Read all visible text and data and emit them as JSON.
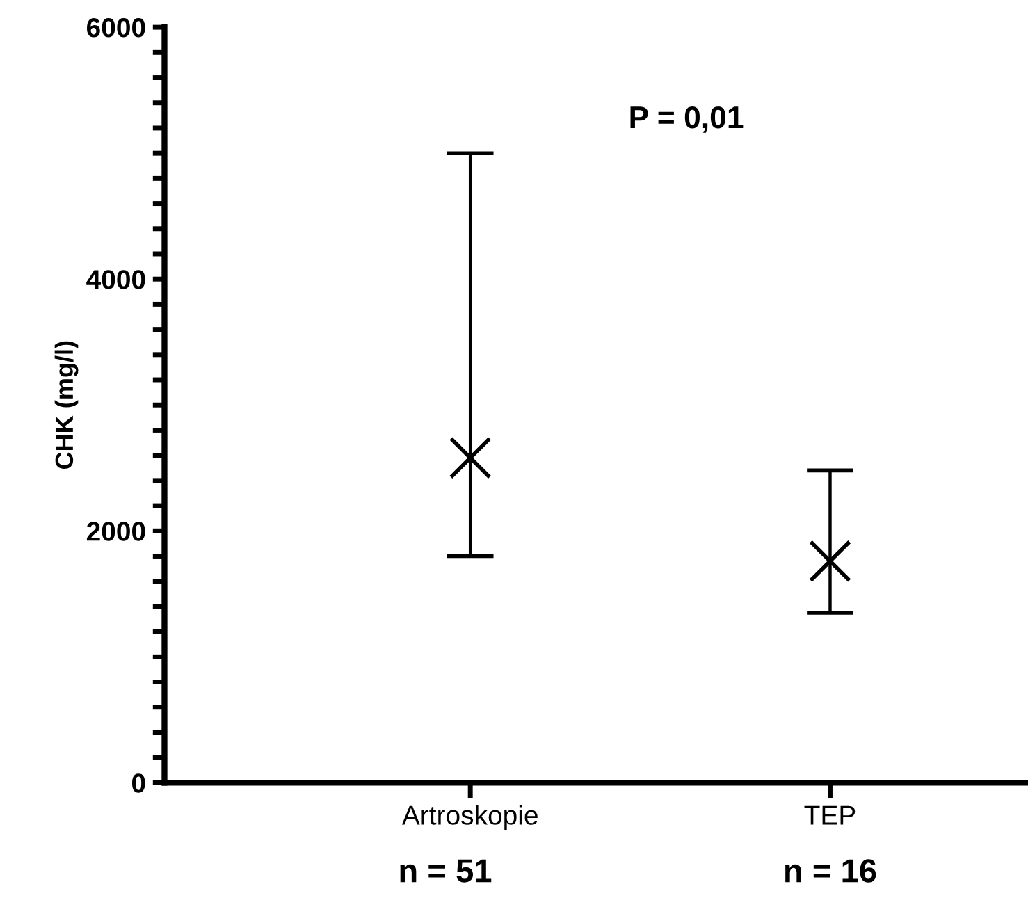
{
  "chart_data": {
    "type": "scatter",
    "ylabel": "CHK (mg/l)",
    "categories": [
      "Artroskopie",
      "TEP"
    ],
    "series": [
      {
        "color": "#000000",
        "marker": "cross",
        "values": [
          2580,
          null
        ],
        "errors": [
          [
            1800,
            5000
          ],
          null
        ]
      },
      {
        "color": "#000000",
        "marker": "cross",
        "values": [
          null,
          1760
        ],
        "errors": [
          null,
          [
            1350,
            2480
          ]
        ]
      }
    ],
    "ylim": [
      0,
      6000
    ],
    "yticks": [
      0,
      {
        "value": 200,
        "label": null
      },
      {
        "value": 400,
        "label": null
      },
      {
        "value": 600,
        "label": null
      },
      {
        "value": 800,
        "label": null
      },
      {
        "value": 1000,
        "label": null
      },
      {
        "value": 1200,
        "label": null
      },
      {
        "value": 1400,
        "label": null
      },
      {
        "value": 1600,
        "label": null
      },
      {
        "value": 1800,
        "label": null
      },
      2000,
      {
        "value": 2200,
        "label": null
      },
      {
        "value": 2400,
        "label": null
      },
      {
        "value": 2600,
        "label": null
      },
      {
        "value": 2800,
        "label": null
      },
      {
        "value": 3000,
        "label": null
      },
      {
        "value": 3200,
        "label": null
      },
      {
        "value": 3400,
        "label": null
      },
      {
        "value": 3600,
        "label": null
      },
      {
        "value": 3800,
        "label": null
      },
      4000,
      {
        "value": 4200,
        "label": null
      },
      {
        "value": 4400,
        "label": null
      },
      {
        "value": 4600,
        "label": null
      },
      {
        "value": 4800,
        "label": null
      },
      {
        "value": 5000,
        "label": null
      },
      {
        "value": 5200,
        "label": null
      },
      {
        "value": 5400,
        "label": null
      },
      {
        "value": 5600,
        "label": null
      },
      {
        "value": 5800,
        "label": null
      },
      6000
    ],
    "annotations": [
      "P = 0,01",
      "n = 51",
      "n = 16"
    ],
    "grid": false,
    "legend": false
  }
}
